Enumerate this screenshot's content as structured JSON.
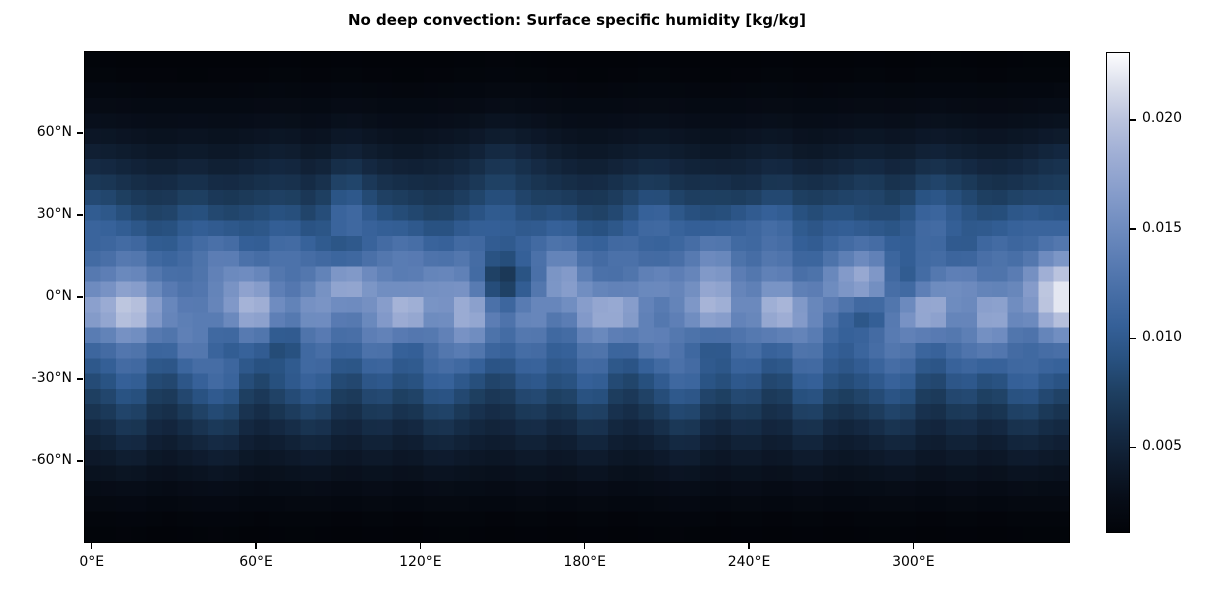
{
  "figure": {
    "background_color": "#ffffff",
    "text_color": "#000000"
  },
  "chart_data": {
    "type": "heatmap",
    "title": "No deep convection: Surface specific humidity [kg/kg]",
    "xlabel": "",
    "ylabel": "",
    "grid_lines": false,
    "xlim": [
      -2.8125,
      357.1875
    ],
    "ylim": [
      -90,
      90
    ],
    "x_ticks": [
      {
        "value": 0,
        "label": "0°E"
      },
      {
        "value": 60,
        "label": "60°E"
      },
      {
        "value": 120,
        "label": "120°E"
      },
      {
        "value": 180,
        "label": "180°E"
      },
      {
        "value": 240,
        "label": "240°E"
      },
      {
        "value": 300,
        "label": "300°E"
      }
    ],
    "y_ticks": [
      {
        "value": 60,
        "label": "60°N"
      },
      {
        "value": 30,
        "label": "30°N"
      },
      {
        "value": 0,
        "label": "0°N"
      },
      {
        "value": -30,
        "label": "-30°N"
      },
      {
        "value": -60,
        "label": "-60°N"
      }
    ],
    "colorbar": {
      "vmin": 0.0011,
      "vmax": 0.0231,
      "ticks": [
        {
          "value": 0.02,
          "label": "0.020"
        },
        {
          "value": 0.015,
          "label": "0.015"
        },
        {
          "value": 0.01,
          "label": "0.010"
        },
        {
          "value": 0.005,
          "label": "0.005"
        }
      ]
    },
    "colormap_stops": [
      [
        0.0,
        "#020409"
      ],
      [
        0.07,
        "#070d18"
      ],
      [
        0.14,
        "#0e1b2d"
      ],
      [
        0.21,
        "#152b45"
      ],
      [
        0.29,
        "#1e3f61"
      ],
      [
        0.36,
        "#285180"
      ],
      [
        0.43,
        "#356098"
      ],
      [
        0.5,
        "#476ea6"
      ],
      [
        0.57,
        "#5b7db4"
      ],
      [
        0.64,
        "#708dc0"
      ],
      [
        0.71,
        "#879dcb"
      ],
      [
        0.79,
        "#a0afd5"
      ],
      [
        0.86,
        "#bac3de"
      ],
      [
        0.93,
        "#dadeeb"
      ],
      [
        1.0,
        "#fdfdff"
      ]
    ],
    "grid": {
      "lon_start": 0,
      "lon_step": 11.25,
      "lat_start": 84.375,
      "lat_step": -11.25,
      "value_scale": 0.001,
      "values_unit": "kg/kg (stored values are multiplied by value_scale)",
      "values": [
        [
          1.2,
          1.1,
          1.1,
          1.0,
          1.1,
          1.1,
          1.2,
          1.1,
          1.2,
          1.1,
          1.0,
          1.1,
          1.2,
          1.3,
          1.2,
          1.1,
          1.0,
          1.1,
          1.2,
          1.1,
          1.0,
          1.1,
          1.2,
          1.1,
          1.1,
          1.2,
          1.1,
          1.2,
          1.2,
          1.1,
          1.2,
          1.2
        ],
        [
          2.0,
          1.9,
          1.8,
          1.9,
          1.8,
          1.9,
          2.0,
          1.8,
          2.1,
          1.9,
          1.8,
          1.9,
          2.0,
          2.2,
          2.1,
          1.9,
          1.8,
          1.9,
          2.0,
          1.9,
          1.8,
          1.9,
          2.0,
          1.8,
          1.9,
          2.0,
          1.9,
          2.1,
          2.0,
          1.9,
          2.0,
          2.1
        ],
        [
          3.2,
          3.0,
          2.8,
          3.0,
          2.8,
          3.0,
          3.2,
          2.8,
          3.4,
          3.0,
          2.8,
          3.0,
          3.2,
          3.8,
          3.4,
          3.0,
          2.8,
          3.0,
          3.2,
          3.0,
          2.8,
          3.0,
          3.2,
          2.8,
          3.0,
          3.2,
          3.0,
          3.4,
          3.2,
          3.0,
          3.2,
          3.5
        ],
        [
          5.0,
          4.5,
          4.0,
          4.5,
          4.0,
          4.5,
          5.0,
          4.0,
          5.5,
          4.5,
          4.0,
          4.5,
          5.0,
          6.5,
          5.5,
          4.5,
          4.0,
          4.5,
          5.0,
          4.5,
          4.0,
          4.5,
          5.0,
          4.0,
          4.5,
          5.0,
          4.5,
          5.5,
          5.0,
          4.5,
          5.0,
          6.0
        ],
        [
          7.5,
          6.5,
          6.0,
          7.0,
          6.0,
          6.5,
          7.0,
          6.0,
          9.5,
          7.0,
          6.5,
          6.0,
          7.0,
          8.5,
          7.0,
          6.5,
          6.0,
          7.0,
          8.0,
          6.5,
          7.0,
          6.0,
          7.5,
          6.5,
          7.0,
          8.0,
          6.5,
          9.0,
          8.0,
          6.5,
          7.0,
          7.5
        ],
        [
          11,
          9,
          8,
          10,
          8.5,
          9,
          10,
          8,
          13,
          10,
          9,
          8,
          9.5,
          11,
          9,
          10,
          8,
          9,
          12.5,
          10,
          9,
          11,
          12,
          9,
          10,
          8.5,
          9,
          12.5,
          10,
          9,
          11,
          10
        ],
        [
          11,
          13,
          10,
          12,
          14,
          10,
          13,
          11,
          8,
          12,
          14,
          11,
          13,
          9,
          12,
          14,
          11,
          13,
          10,
          12,
          15,
          11,
          13,
          10,
          12,
          14,
          10,
          12,
          9,
          13,
          11,
          14
        ],
        [
          14,
          16,
          13,
          12,
          15,
          17,
          12,
          14,
          20,
          15,
          13,
          16,
          14,
          4.5,
          10,
          19,
          13,
          12,
          16,
          14,
          18,
          13,
          15,
          12,
          17,
          20,
          9,
          13,
          16,
          12,
          15,
          22
        ],
        [
          18,
          23,
          16,
          13,
          15,
          21,
          14,
          17,
          13,
          16,
          22,
          14,
          21,
          12,
          16,
          13,
          19,
          20,
          12,
          15,
          21,
          13,
          22,
          16,
          12,
          8,
          15,
          21,
          13,
          20,
          14,
          22
        ],
        [
          12,
          14,
          11,
          15,
          9,
          12,
          7,
          13,
          11,
          14,
          10,
          13,
          15,
          11,
          13,
          10,
          14,
          11,
          15,
          12,
          9,
          13,
          11,
          14,
          10,
          12,
          14,
          11,
          13,
          15,
          11,
          13
        ],
        [
          9,
          12,
          8,
          11,
          13,
          8,
          10,
          12,
          8,
          11,
          9,
          12,
          10,
          8,
          11,
          9,
          12,
          8,
          10,
          13,
          9,
          11,
          8,
          12,
          9,
          10,
          12,
          8,
          11,
          9,
          12,
          10
        ],
        [
          7,
          9,
          6,
          8,
          9.5,
          6,
          7.5,
          9,
          6,
          8,
          6.5,
          9,
          7,
          6,
          8,
          6.5,
          9,
          6,
          7.5,
          9.5,
          6.5,
          8,
          6,
          9,
          6.5,
          7.5,
          9,
          6,
          8,
          6.5,
          9,
          7
        ],
        [
          5,
          6.5,
          4.5,
          5.5,
          6.5,
          4.5,
          5,
          6,
          4.5,
          5.5,
          4.5,
          6,
          5,
          4.5,
          5.5,
          4.5,
          6,
          4.5,
          5,
          6.5,
          4.5,
          5.5,
          4.5,
          6,
          4.5,
          5,
          6,
          4.5,
          5.5,
          4.5,
          6,
          5
        ],
        [
          3.5,
          4.0,
          3.2,
          3.6,
          4.0,
          3.2,
          3.4,
          3.8,
          3.2,
          3.6,
          3.2,
          3.8,
          3.4,
          3.2,
          3.6,
          3.2,
          3.8,
          3.2,
          3.4,
          4.0,
          3.2,
          3.6,
          3.2,
          3.8,
          3.2,
          3.4,
          3.8,
          3.2,
          3.6,
          3.2,
          3.8,
          3.4
        ],
        [
          2.1,
          2.3,
          2.0,
          2.2,
          2.3,
          2.0,
          2.1,
          2.2,
          2.0,
          2.2,
          2.0,
          2.2,
          2.1,
          2.0,
          2.2,
          2.0,
          2.2,
          2.0,
          2.1,
          2.3,
          2.0,
          2.2,
          2.0,
          2.2,
          2.0,
          2.1,
          2.2,
          2.0,
          2.2,
          2.0,
          2.2,
          2.1
        ],
        [
          1.2,
          1.3,
          1.1,
          1.2,
          1.3,
          1.1,
          1.2,
          1.2,
          1.1,
          1.2,
          1.1,
          1.2,
          1.2,
          1.1,
          1.2,
          1.1,
          1.2,
          1.1,
          1.2,
          1.3,
          1.1,
          1.2,
          1.1,
          1.2,
          1.1,
          1.2,
          1.2,
          1.1,
          1.2,
          1.1,
          1.2,
          1.2
        ]
      ]
    }
  }
}
